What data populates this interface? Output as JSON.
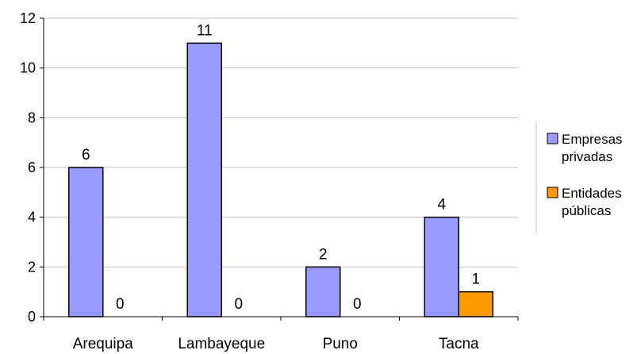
{
  "chart_data": {
    "type": "bar",
    "categories": [
      "Arequipa",
      "Lambayeque",
      "Puno",
      "Tacna"
    ],
    "series": [
      {
        "name": "Empresas privadas",
        "values": [
          6,
          11,
          2,
          4
        ],
        "color": "#9999ff"
      },
      {
        "name": "Entidades públicas",
        "values": [
          0,
          0,
          0,
          1
        ],
        "color": "#ff9900"
      }
    ],
    "legend_lines": [
      [
        "Empresas",
        "privadas"
      ],
      [
        "Entidades",
        "públicas"
      ]
    ],
    "ylim": [
      0,
      12
    ],
    "yticks": [
      0,
      2,
      4,
      6,
      8,
      10,
      12
    ],
    "grid": true,
    "legend_position": "right"
  }
}
